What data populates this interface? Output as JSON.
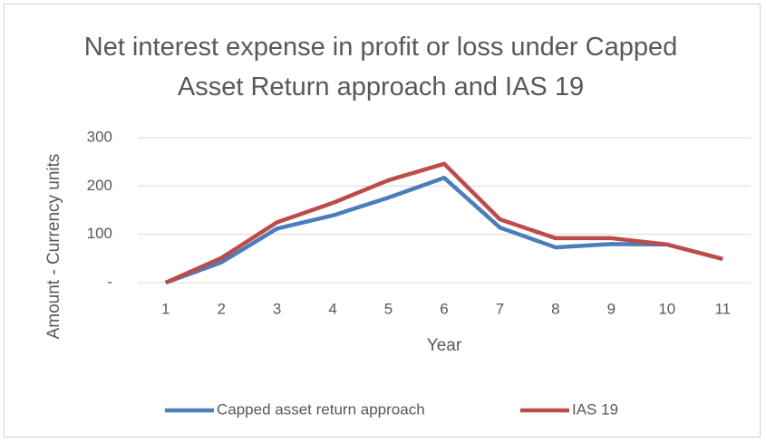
{
  "chart_data": {
    "type": "line",
    "title": "Net interest expense in profit or loss under Capped Asset Return approach and IAS 19",
    "x_label": "Year",
    "y_label": "Amount - Currency units",
    "categories": [
      "1",
      "2",
      "3",
      "4",
      "5",
      "6",
      "7",
      "8",
      "9",
      "10",
      "11"
    ],
    "series": [
      {
        "name": "Capped asset return approach",
        "color": "#4a7ebb",
        "values": [
          0,
          42,
          112,
          139,
          176,
          217,
          114,
          73,
          80,
          79,
          49
        ]
      },
      {
        "name": "IAS 19",
        "color": "#be4b48",
        "values": [
          0,
          51,
          125,
          165,
          212,
          246,
          131,
          92,
          92,
          79,
          49
        ]
      }
    ],
    "ylim": [
      0,
      300
    ],
    "yticks": [
      {
        "value": 0,
        "label": "-"
      },
      100,
      200,
      300
    ],
    "grid": true,
    "legend": "bottom"
  }
}
